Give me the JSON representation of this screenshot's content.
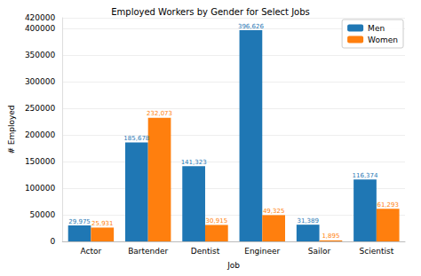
{
  "chart_data": {
    "type": "bar",
    "title": "Employed Workers by Gender for Select Jobs",
    "x_label": "Job",
    "y_label": "# Employed",
    "categories": [
      "Actor",
      "Bartender",
      "Dentist",
      "Engineer",
      "Sailor",
      "Scientist"
    ],
    "series": [
      {
        "name": "Men",
        "color": "#1f77b4",
        "values": [
          29975,
          185678,
          141323,
          396626,
          31389,
          116374
        ],
        "value_labels": [
          "29,975",
          "185,678",
          "141,323",
          "396,626",
          "31,389",
          "116,374"
        ]
      },
      {
        "name": "Women",
        "color": "#ff7f0e",
        "values": [
          25931,
          232073,
          30915,
          49325,
          1895,
          61293
        ],
        "value_labels": [
          "25,931",
          "232,073",
          "30,915",
          "49,325",
          "1,895",
          "61,293"
        ]
      }
    ],
    "ylim": [
      0,
      420000
    ],
    "yticks": [
      0,
      50000,
      100000,
      150000,
      200000,
      250000,
      300000,
      350000,
      400000
    ],
    "grid": true,
    "legend": "upper right",
    "data_labels": true
  }
}
